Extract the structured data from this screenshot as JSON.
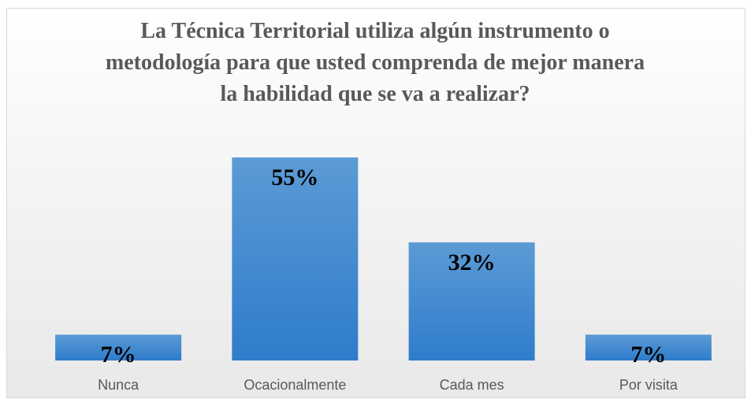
{
  "chart_data": {
    "type": "bar",
    "title": "La Técnica Territorial utiliza algún instrumento o metodología para que usted comprenda de mejor manera la habilidad que se va a realizar?",
    "categories": [
      "Nunca",
      "Ocacionalmente",
      "Cada mes",
      "Por visita"
    ],
    "values": [
      7,
      55,
      32,
      7
    ],
    "value_labels": [
      "7%",
      "55%",
      "32%",
      "7%"
    ],
    "color": "#4a8fd6"
  }
}
